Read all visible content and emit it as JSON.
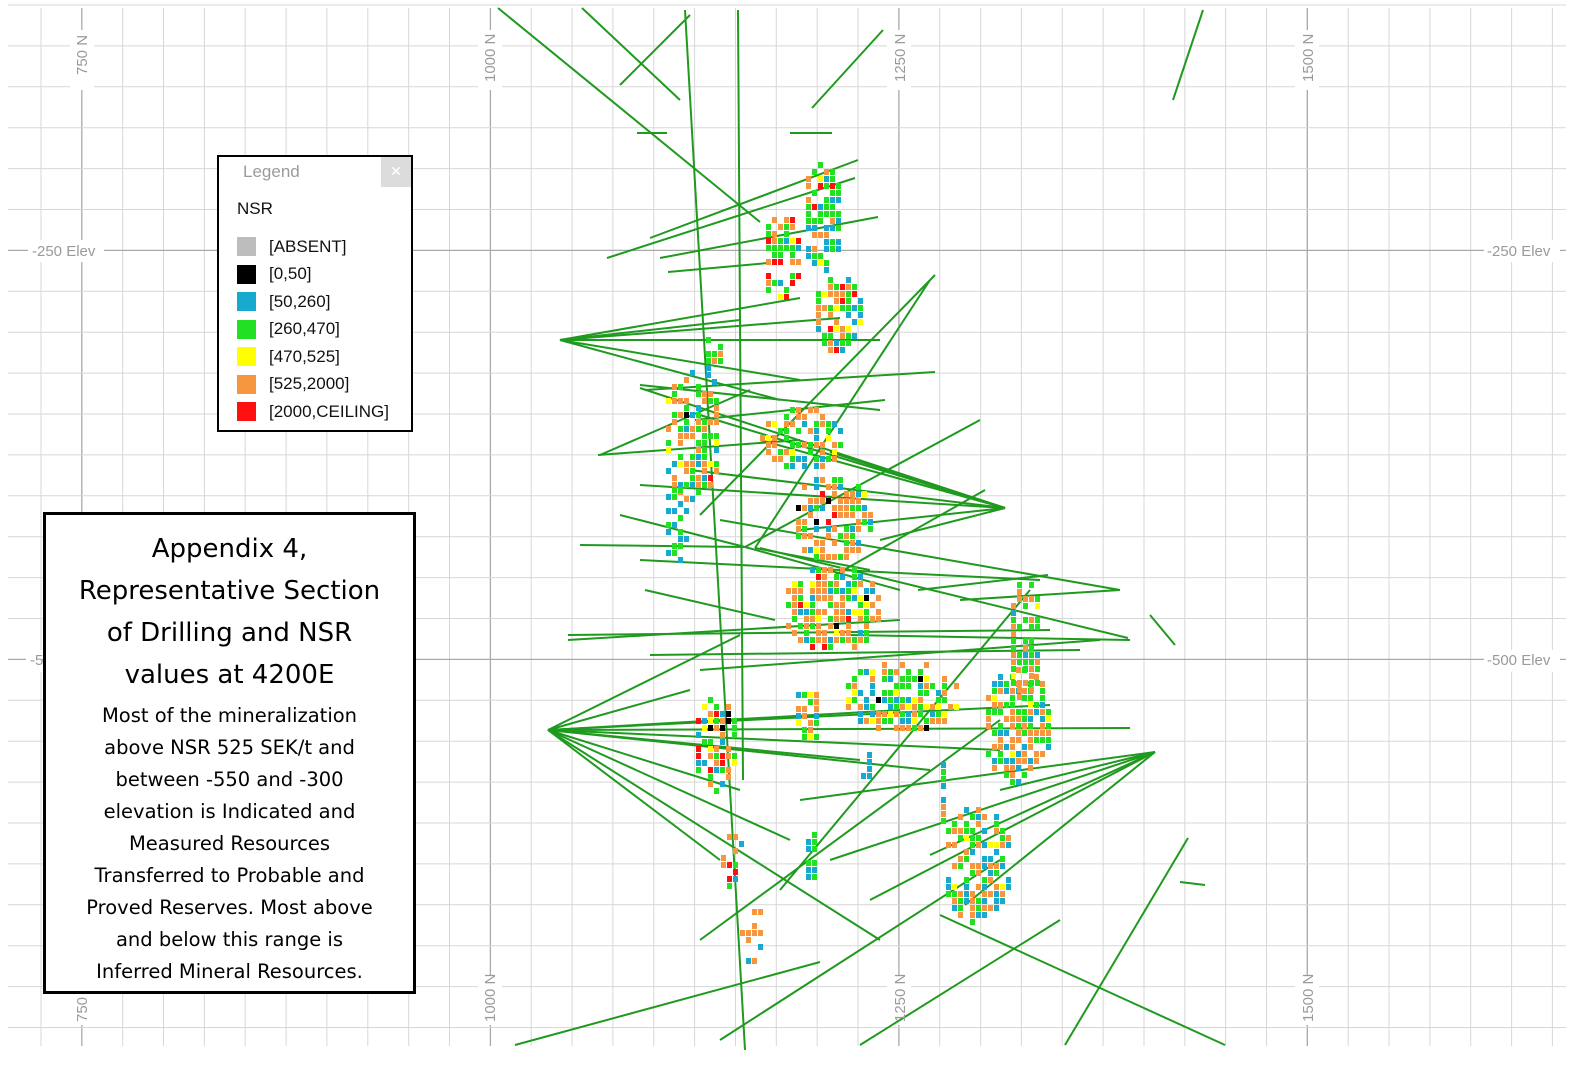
{
  "grid": {
    "northing_labels": [
      "750 N",
      "1000 N",
      "1250 N",
      "1500 N"
    ],
    "bottom_labels": [
      "750",
      "1000 N",
      "1250 N",
      "1500 N"
    ],
    "elevation_labels_left": [
      "-250 Elev",
      "-5"
    ],
    "elevation_labels_right": [
      "-250 Elev",
      "-500 Elev"
    ]
  },
  "legend": {
    "title": "Legend",
    "close_icon": "close-icon",
    "heading": "NSR",
    "items": [
      {
        "label": "[ABSENT]",
        "color": "#bdbdbd"
      },
      {
        "label": "[0,50]",
        "color": "#000000"
      },
      {
        "label": "[50,260]",
        "color": "#18a9cf"
      },
      {
        "label": "[260,470]",
        "color": "#22e022"
      },
      {
        "label": "[470,525]",
        "color": "#ffff00"
      },
      {
        "label": "[525,2000]",
        "color": "#f6963f"
      },
      {
        "label": "[2000,CEILING]",
        "color": "#ff1010"
      }
    ]
  },
  "note": {
    "title_lines": [
      "Appendix 4,",
      "Representative Section",
      "of Drilling and NSR",
      "values at 4200E"
    ],
    "body_lines": [
      "Most of the mineralization",
      "above NSR 525 SEK/t and",
      "between -550 and -300",
      "elevation is Indicated and",
      "Measured Resources",
      "Transferred to Probable and",
      "Proved Reserves. Most above",
      "and below this range is",
      "Inferred Mineral Resources."
    ]
  },
  "colors": {
    "drillhole": "#1f9a1f",
    "grid_major": "#a9a9a9",
    "grid_minor": "#d7d7d7"
  }
}
